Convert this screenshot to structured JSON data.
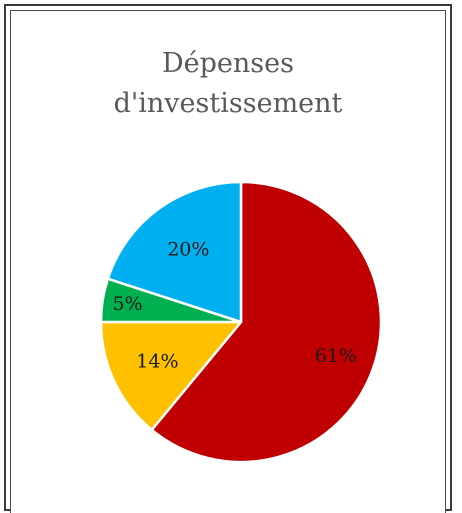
{
  "chart_data": {
    "type": "pie",
    "title": "Dépenses d'investissement",
    "title_lines": [
      "Dépenses",
      "d'investissement"
    ],
    "slices": [
      {
        "label": "61%",
        "value": 61,
        "color": "#c00000"
      },
      {
        "label": "14%",
        "value": 14,
        "color": "#ffc000"
      },
      {
        "label": "5%",
        "value": 5,
        "color": "#00b050"
      },
      {
        "label": "20%",
        "value": 20,
        "color": "#00b0f0"
      }
    ],
    "legend": "none"
  }
}
